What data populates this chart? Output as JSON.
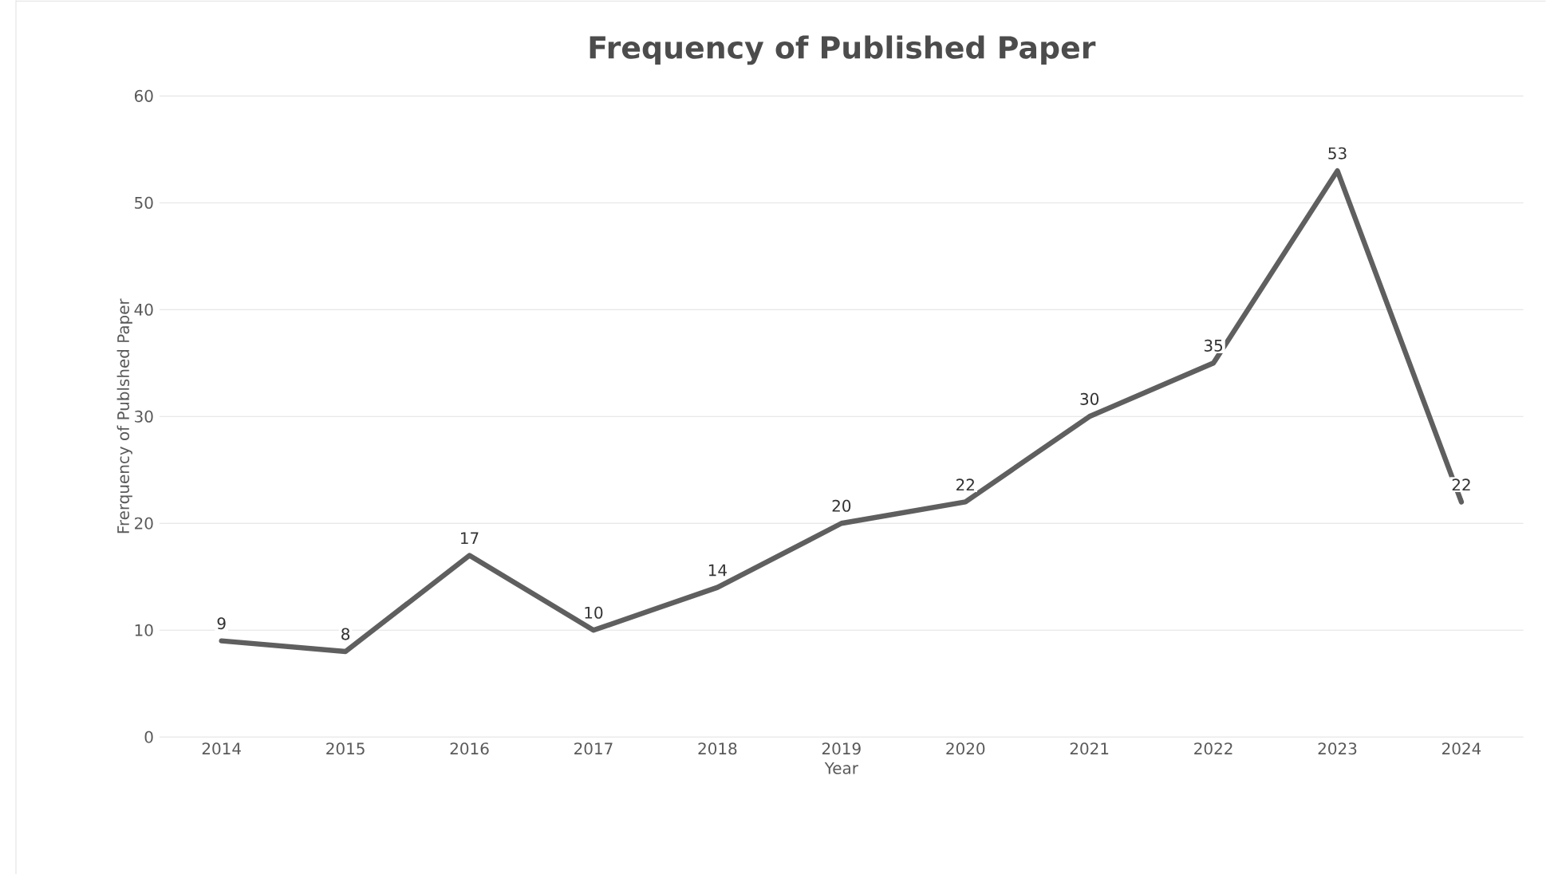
{
  "chart_data": {
    "type": "line",
    "title": "Frequency of Published Paper",
    "xlabel": "Year",
    "ylabel": "Frerquency of Publshed Paper",
    "categories": [
      "2014",
      "2015",
      "2016",
      "2017",
      "2018",
      "2019",
      "2020",
      "2021",
      "2022",
      "2023",
      "2024"
    ],
    "series": [
      {
        "color": "#5f5f5f",
        "values": [
          9,
          8,
          17,
          10,
          14,
          20,
          22,
          30,
          35,
          53,
          22
        ]
      }
    ],
    "ylim": [
      0,
      60
    ],
    "yticks": [
      0,
      10,
      20,
      30,
      40,
      50,
      60
    ],
    "grid": "y",
    "data_labels": true,
    "marker": "none",
    "line_style": "solid"
  }
}
